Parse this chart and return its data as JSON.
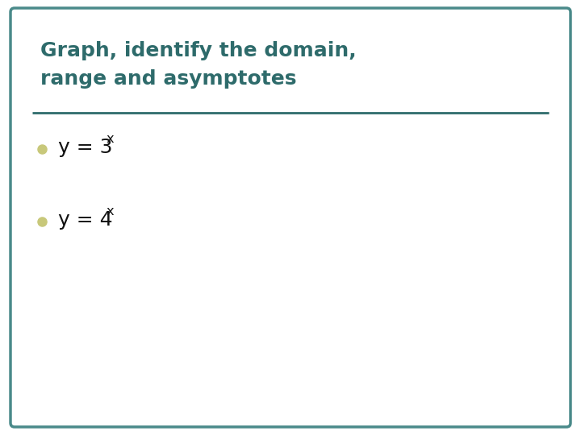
{
  "title_line1": "Graph, identify the domain,",
  "title_line2": "range and asymptotes",
  "title_color": "#2e6b6b",
  "background_color": "#ffffff",
  "border_color": "#4a8a8a",
  "border_linewidth": 2.5,
  "bullet_color": "#c8c87a",
  "bullet_size": 8,
  "item1_base": "y = 3",
  "item1_sup": "x",
  "item2_base": "y = 4",
  "item2_sup": "x",
  "item_color": "#111111",
  "item_fontsize": 18,
  "title_fontsize": 18,
  "separator_color": "#2e6b6b",
  "separator_linewidth": 2.0
}
